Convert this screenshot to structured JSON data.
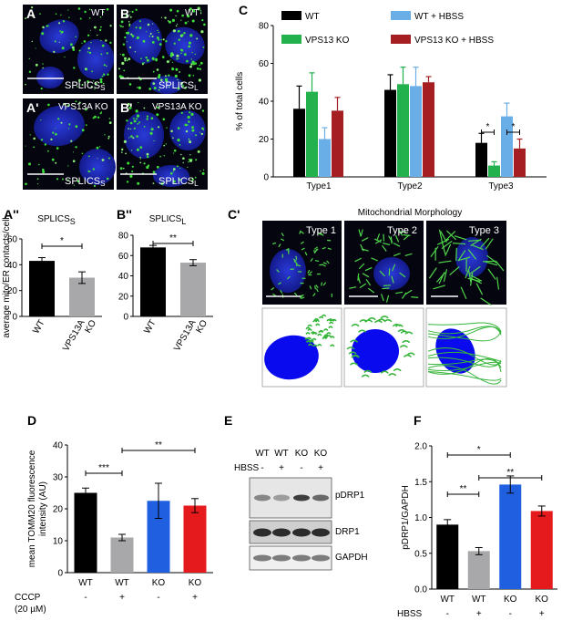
{
  "panels": {
    "A": {
      "letter": "A",
      "label": "WT",
      "marker": "SPLICS",
      "sub": "S"
    },
    "B": {
      "letter": "B",
      "label": "WT",
      "marker": "SPLICS",
      "sub": "L"
    },
    "A1": {
      "letter": "A'",
      "label": "VPS13A KO",
      "marker": "SPLICS",
      "sub": "S"
    },
    "B1": {
      "letter": "B'",
      "label": "VPS13A KO",
      "marker": "SPLICS",
      "sub": "L"
    },
    "C": {
      "letter": "C"
    },
    "C1": {
      "letter": "C'",
      "title": "Mitochondrial Morphology",
      "types": [
        "Type 1",
        "Type 2",
        "Type 3"
      ]
    },
    "D": {
      "letter": "D"
    },
    "E": {
      "letter": "E"
    },
    "F": {
      "letter": "F"
    },
    "A2": {
      "letter": "A''"
    },
    "B2": {
      "letter": "B''"
    }
  },
  "colors": {
    "black": "#000000",
    "grey": "#a8a8ab",
    "green": "#22b14c",
    "lightblue": "#6aaee8",
    "darkred": "#a41e22",
    "blue": "#1f5fe0",
    "red": "#e41a1c",
    "nucleus": "#0a0aee",
    "mito": "#35b53a"
  },
  "chart_data": [
    {
      "id": "A2",
      "type": "bar",
      "title": "SPLICS",
      "title_sub": "S",
      "ylabel": "average mito/ER contacts/cell",
      "categories": [
        "WT",
        "VPS13A\nKO"
      ],
      "values": [
        43,
        30
      ],
      "errors": [
        2.5,
        4.5
      ],
      "ylim": [
        0,
        60
      ],
      "yticks": [
        0,
        20,
        40,
        60
      ],
      "significance": [
        {
          "pair": [
            0,
            1
          ],
          "label": "*"
        }
      ]
    },
    {
      "id": "B2",
      "type": "bar",
      "title": "SPLICS",
      "title_sub": "L",
      "categories": [
        "WT",
        "VPS13A\nKO"
      ],
      "values": [
        68,
        53
      ],
      "errors": [
        2,
        3
      ],
      "ylim": [
        0,
        80
      ],
      "yticks": [
        0,
        20,
        40,
        60,
        80
      ],
      "significance": [
        {
          "pair": [
            0,
            1
          ],
          "label": "**"
        }
      ]
    },
    {
      "id": "C",
      "type": "bar",
      "ylabel": "% of total cells",
      "categories": [
        "Type1",
        "Type2",
        "Type3"
      ],
      "series": [
        {
          "name": "WT",
          "values": [
            36,
            46,
            18
          ],
          "errors": [
            12,
            8,
            5
          ]
        },
        {
          "name": "VPS13 KO",
          "values": [
            45,
            49,
            6
          ],
          "errors": [
            10,
            9,
            2
          ]
        },
        {
          "name": "WT + HBSS",
          "values": [
            20,
            48,
            32
          ],
          "errors": [
            6,
            10,
            7
          ]
        },
        {
          "name": "VPS13 KO + HBSS",
          "values": [
            35,
            50,
            15
          ],
          "errors": [
            7,
            3,
            5
          ]
        }
      ],
      "ylim": [
        0,
        80
      ],
      "yticks": [
        0,
        20,
        40,
        60,
        80
      ],
      "legend": "top",
      "significance": [
        {
          "category": 2,
          "pair": [
            0,
            1
          ],
          "label": "*"
        },
        {
          "category": 2,
          "pair": [
            2,
            3
          ],
          "label": "*"
        }
      ]
    },
    {
      "id": "D",
      "type": "bar",
      "ylabel": "mean TOMM20 fluorescence intensity (AU)",
      "categories": [
        "WT",
        "WT",
        "KO",
        "KO"
      ],
      "values": [
        25,
        11,
        22.5,
        21
      ],
      "errors": [
        1.5,
        1,
        5.5,
        2.2
      ],
      "ylim": [
        0,
        40
      ],
      "yticks": [
        0,
        10,
        20,
        30,
        40
      ],
      "treatment_label": "CCCP",
      "treatment_sub": "(20 µM)",
      "treatment": [
        "-",
        "+",
        "-",
        "+"
      ],
      "significance": [
        {
          "pair": [
            0,
            1
          ],
          "label": "***"
        },
        {
          "pair": [
            1,
            3
          ],
          "label": "**"
        }
      ]
    },
    {
      "id": "F",
      "type": "bar",
      "ylabel": "pDRP1/GAPDH",
      "categories": [
        "WT",
        "WT",
        "KO",
        "KO"
      ],
      "values": [
        0.9,
        0.53,
        1.46,
        1.09
      ],
      "errors": [
        0.07,
        0.05,
        0.12,
        0.07
      ],
      "ylim": [
        0,
        2.0
      ],
      "yticks": [
        0,
        0.5,
        1.0,
        1.5,
        2.0
      ],
      "treatment_label": "HBSS",
      "treatment": [
        "-",
        "+",
        "-",
        "+"
      ],
      "significance": [
        {
          "pair": [
            0,
            1
          ],
          "label": "**"
        },
        {
          "pair": [
            0,
            2
          ],
          "label": "*"
        },
        {
          "pair": [
            1,
            3
          ],
          "label": "**"
        }
      ]
    }
  ],
  "blot": {
    "lanes": [
      "WT",
      "WT",
      "KO",
      "KO"
    ],
    "treatment_label": "HBSS",
    "treatment": [
      "-",
      "+",
      "-",
      "+"
    ],
    "rows": [
      "pDRP1",
      "DRP1",
      "GAPDH"
    ]
  }
}
